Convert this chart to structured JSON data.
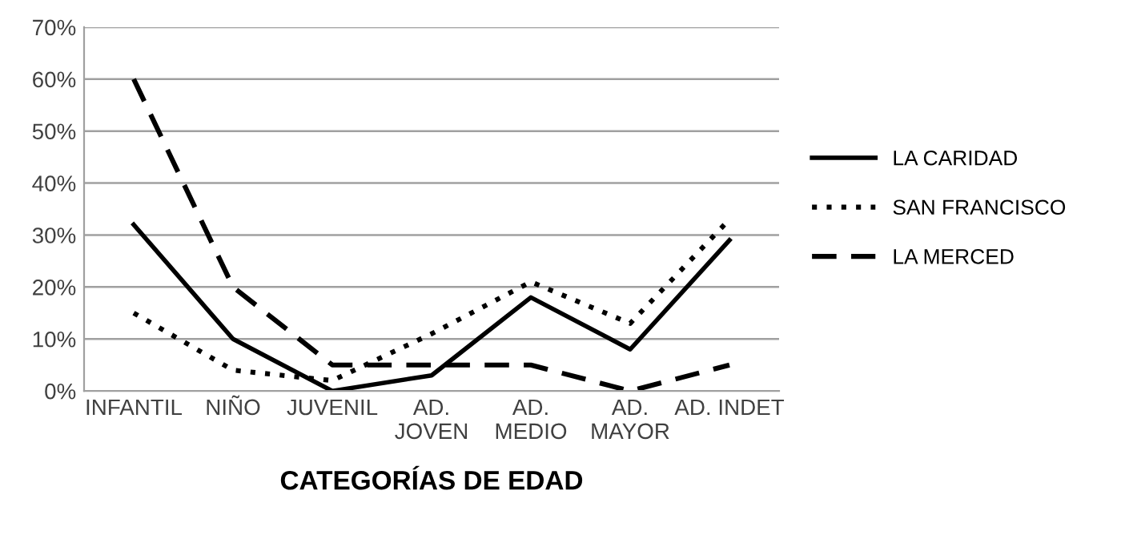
{
  "chart_data": {
    "type": "line",
    "xlabel": "CATEGORÍAS DE EDAD",
    "categories": [
      "INFANTIL",
      "NIÑO",
      "JUVENIL",
      "AD.\nJOVEN",
      "AD.\nMEDIO",
      "AD.\nMAYOR",
      "AD. INDET"
    ],
    "series": [
      {
        "name": "LA CARIDAD",
        "color": "#000000",
        "line_style": "solid",
        "values": [
          32,
          10,
          0,
          3,
          18,
          8,
          29
        ]
      },
      {
        "name": "SAN FRANCISCO",
        "color": "#000000",
        "line_style": "dotted",
        "values": [
          15,
          4,
          2,
          11,
          21,
          13,
          33
        ]
      },
      {
        "name": "LA MERCED",
        "color": "#000000",
        "line_style": "dashed",
        "values": [
          60,
          20,
          5,
          5,
          5,
          0,
          5
        ]
      }
    ],
    "ylim": [
      0,
      70
    ],
    "yticks": [
      {
        "value": 0,
        "label": "0%"
      },
      {
        "value": 10,
        "label": "10%"
      },
      {
        "value": 20,
        "label": "20%"
      },
      {
        "value": 30,
        "label": "30%"
      },
      {
        "value": 40,
        "label": "40%"
      },
      {
        "value": 50,
        "label": "50%"
      },
      {
        "value": 60,
        "label": "60%"
      },
      {
        "value": 70,
        "label": "70%"
      }
    ],
    "grid": "y",
    "legend": "right",
    "marker": "none"
  }
}
